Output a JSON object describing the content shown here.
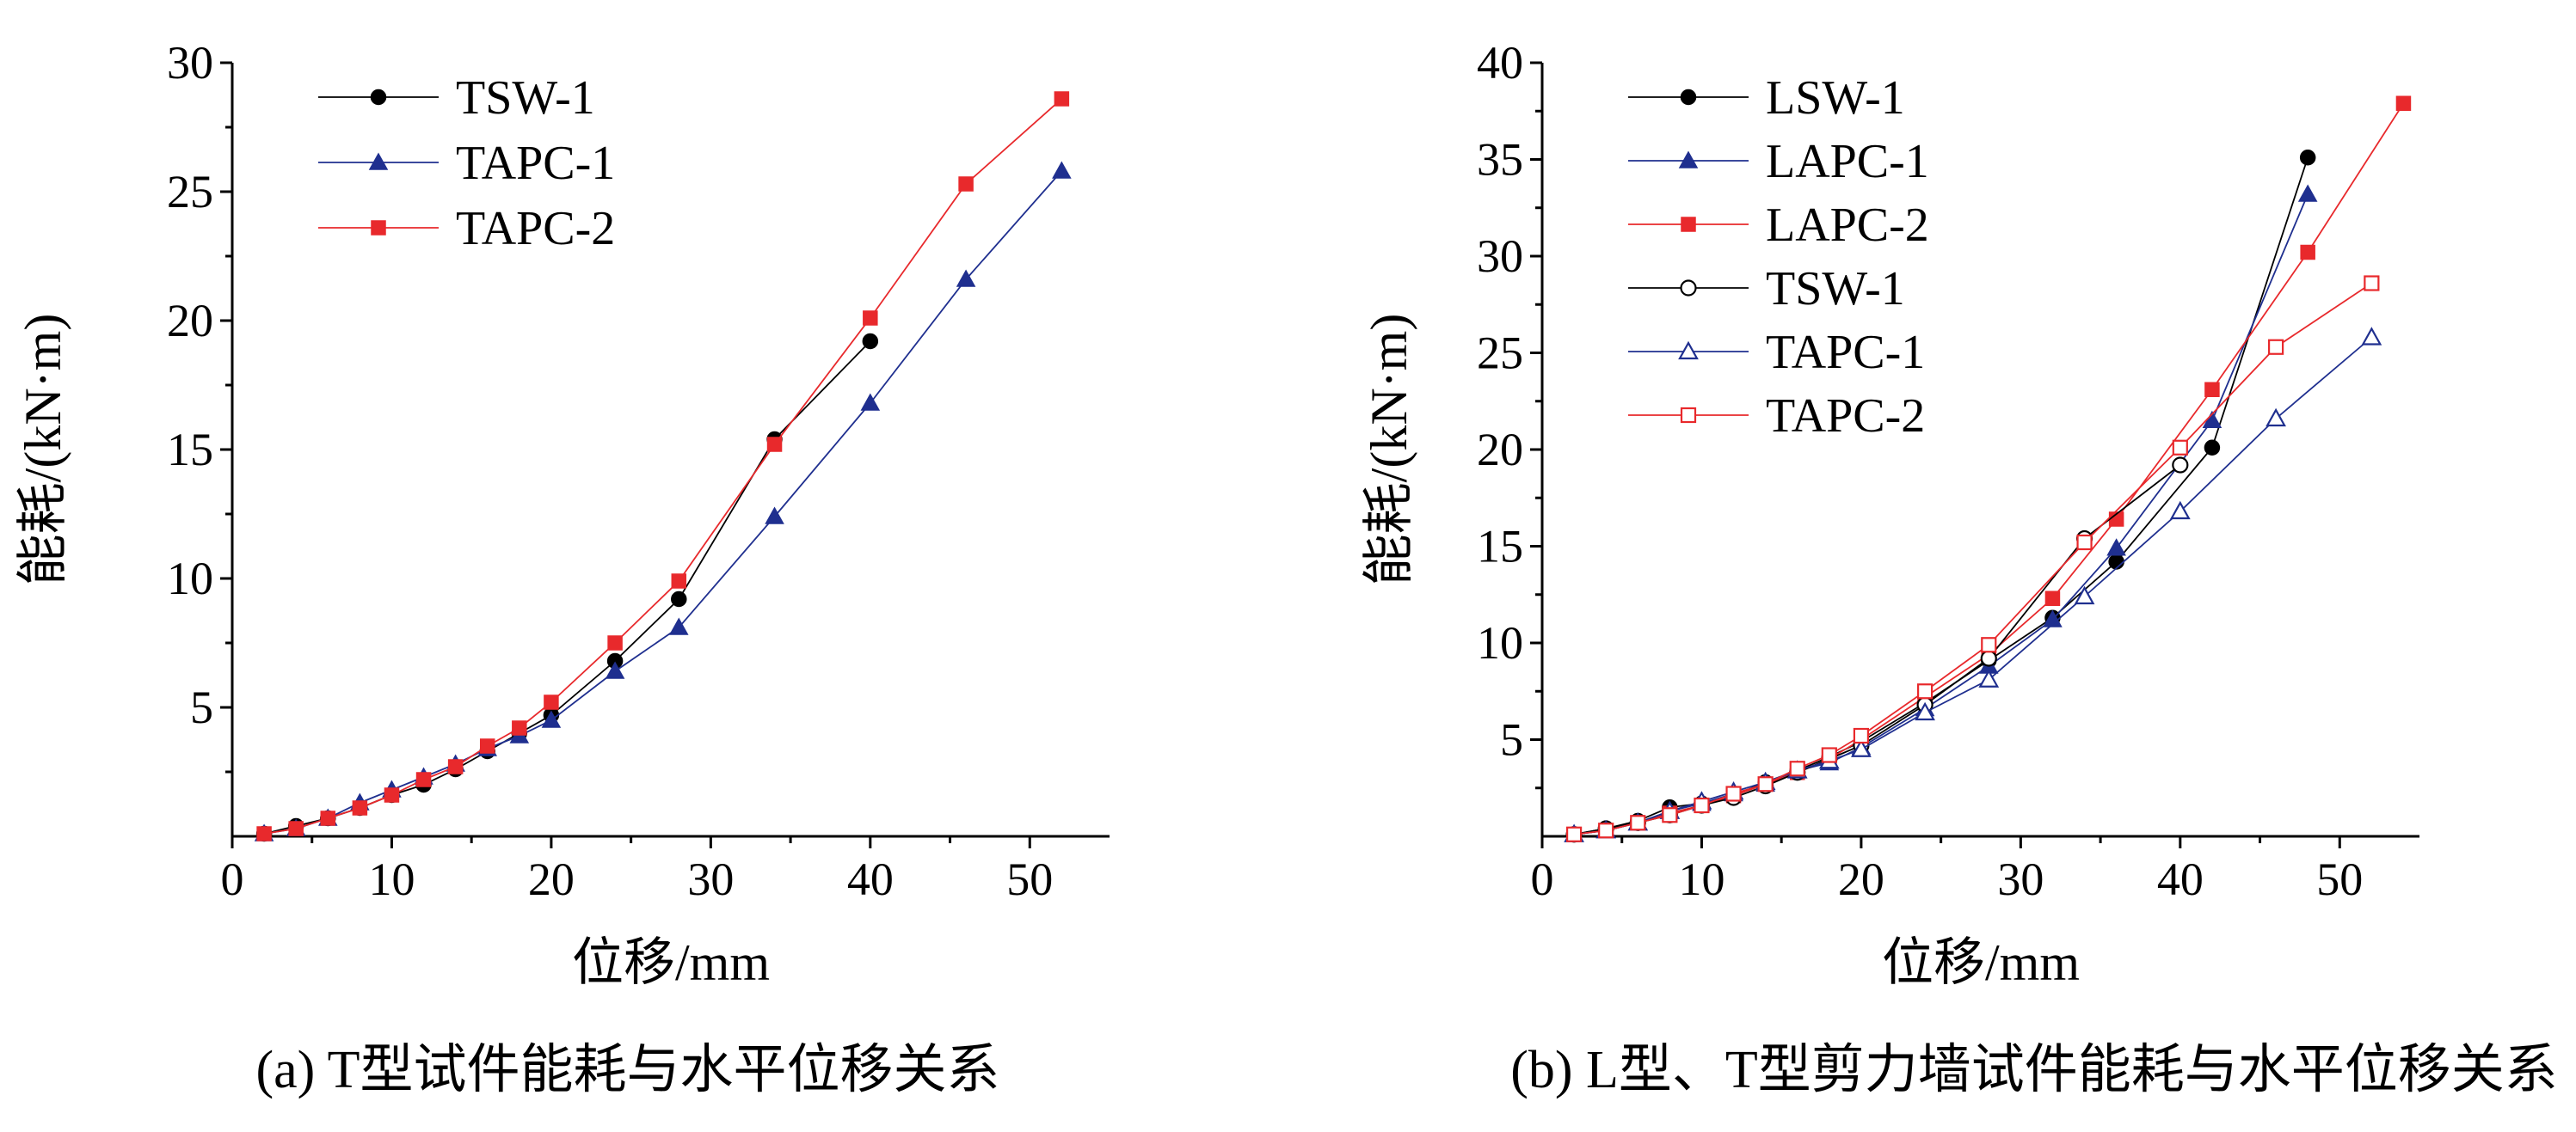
{
  "chart_data": [
    {
      "type": "line",
      "title": "",
      "caption": "(a) T型试件能耗与水平位移关系",
      "xlabel": "位移/mm",
      "ylabel": "能耗/(kN·m)",
      "xlim": [
        0,
        55
      ],
      "ylim": [
        0,
        30
      ],
      "xticks": [
        0,
        10,
        20,
        30,
        40,
        50
      ],
      "yticks": [
        5,
        10,
        15,
        20,
        25,
        30
      ],
      "grid": false,
      "legend_position": "top-left",
      "series": [
        {
          "name": "TSW-1",
          "color": "#000000",
          "marker": "circle",
          "filled": true,
          "x": [
            2,
            4,
            6,
            8,
            10,
            12,
            14,
            16,
            18,
            20,
            24,
            28,
            34,
            40
          ],
          "y": [
            0.1,
            0.4,
            0.7,
            1.1,
            1.6,
            2.0,
            2.6,
            3.3,
            4.0,
            4.7,
            6.8,
            9.2,
            15.4,
            19.2
          ]
        },
        {
          "name": "TAPC-1",
          "color": "#1f2f8f",
          "marker": "triangle",
          "filled": true,
          "x": [
            2,
            4,
            6,
            8,
            10,
            12,
            14,
            16,
            18,
            20,
            24,
            28,
            34,
            40,
            46,
            52
          ],
          "y": [
            0.1,
            0.3,
            0.7,
            1.3,
            1.8,
            2.3,
            2.8,
            3.4,
            3.9,
            4.5,
            6.4,
            8.1,
            12.4,
            16.8,
            21.6,
            25.8
          ]
        },
        {
          "name": "TAPC-2",
          "color": "#e8292c",
          "marker": "square",
          "filled": true,
          "x": [
            2,
            4,
            6,
            8,
            10,
            12,
            14,
            16,
            18,
            20,
            24,
            28,
            34,
            40,
            46,
            52
          ],
          "y": [
            0.1,
            0.3,
            0.7,
            1.1,
            1.6,
            2.2,
            2.7,
            3.5,
            4.2,
            5.2,
            7.5,
            9.9,
            15.2,
            20.1,
            25.3,
            28.6
          ]
        }
      ]
    },
    {
      "type": "line",
      "title": "",
      "caption": "(b) L型、T型剪力墙试件能耗与水平位移关系",
      "xlabel": "位移/mm",
      "ylabel": "能耗/(kN·m)",
      "xlim": [
        0,
        55
      ],
      "ylim": [
        0,
        40
      ],
      "xticks": [
        0,
        10,
        20,
        30,
        40,
        50
      ],
      "yticks": [
        5,
        10,
        15,
        20,
        25,
        30,
        35,
        40
      ],
      "grid": false,
      "legend_position": "top-left",
      "series": [
        {
          "name": "LSW-1",
          "color": "#000000",
          "marker": "circle",
          "filled": true,
          "x": [
            2,
            4,
            6,
            8,
            10,
            12,
            14,
            16,
            18,
            20,
            24,
            28,
            32,
            36,
            42,
            48
          ],
          "y": [
            0.1,
            0.4,
            0.8,
            1.5,
            1.7,
            2.1,
            2.8,
            3.4,
            4.1,
            4.9,
            6.9,
            9.1,
            11.3,
            14.2,
            20.1,
            35.1
          ]
        },
        {
          "name": "LAPC-1",
          "color": "#1f2f8f",
          "marker": "triangle",
          "filled": true,
          "x": [
            2,
            4,
            6,
            8,
            10,
            12,
            14,
            16,
            18,
            20,
            24,
            28,
            32,
            36,
            42,
            48
          ],
          "y": [
            0.1,
            0.3,
            0.7,
            1.3,
            1.7,
            2.2,
            2.7,
            3.4,
            3.8,
            4.6,
            6.6,
            8.8,
            11.2,
            14.9,
            21.5,
            33.2
          ]
        },
        {
          "name": "LAPC-2",
          "color": "#e8292c",
          "marker": "square",
          "filled": true,
          "x": [
            2,
            4,
            6,
            8,
            10,
            12,
            14,
            16,
            18,
            20,
            24,
            28,
            32,
            36,
            42,
            48,
            54
          ],
          "y": [
            0.1,
            0.3,
            0.7,
            1.2,
            1.6,
            2.1,
            2.7,
            3.3,
            4.0,
            5.0,
            7.2,
            9.4,
            12.3,
            16.4,
            23.1,
            30.2,
            37.9
          ]
        },
        {
          "name": "TSW-1",
          "color": "#000000",
          "marker": "circle",
          "filled": false,
          "x": [
            2,
            4,
            6,
            8,
            10,
            12,
            14,
            16,
            18,
            20,
            24,
            28,
            34,
            40
          ],
          "y": [
            0.1,
            0.4,
            0.7,
            1.1,
            1.6,
            2.0,
            2.6,
            3.3,
            4.0,
            4.7,
            6.8,
            9.2,
            15.4,
            19.2
          ]
        },
        {
          "name": "TAPC-1",
          "color": "#1f2f8f",
          "marker": "triangle",
          "filled": false,
          "x": [
            2,
            4,
            6,
            8,
            10,
            12,
            14,
            16,
            18,
            20,
            24,
            28,
            34,
            40,
            46,
            52
          ],
          "y": [
            0.1,
            0.3,
            0.7,
            1.3,
            1.8,
            2.3,
            2.8,
            3.4,
            3.9,
            4.5,
            6.4,
            8.1,
            12.4,
            16.8,
            21.6,
            25.8
          ]
        },
        {
          "name": "TAPC-2",
          "color": "#e8292c",
          "marker": "square",
          "filled": false,
          "x": [
            2,
            4,
            6,
            8,
            10,
            12,
            14,
            16,
            18,
            20,
            24,
            28,
            34,
            40,
            46,
            52
          ],
          "y": [
            0.1,
            0.3,
            0.7,
            1.1,
            1.6,
            2.2,
            2.7,
            3.5,
            4.2,
            5.2,
            7.5,
            9.9,
            15.2,
            20.1,
            25.3,
            28.6
          ]
        }
      ]
    }
  ]
}
